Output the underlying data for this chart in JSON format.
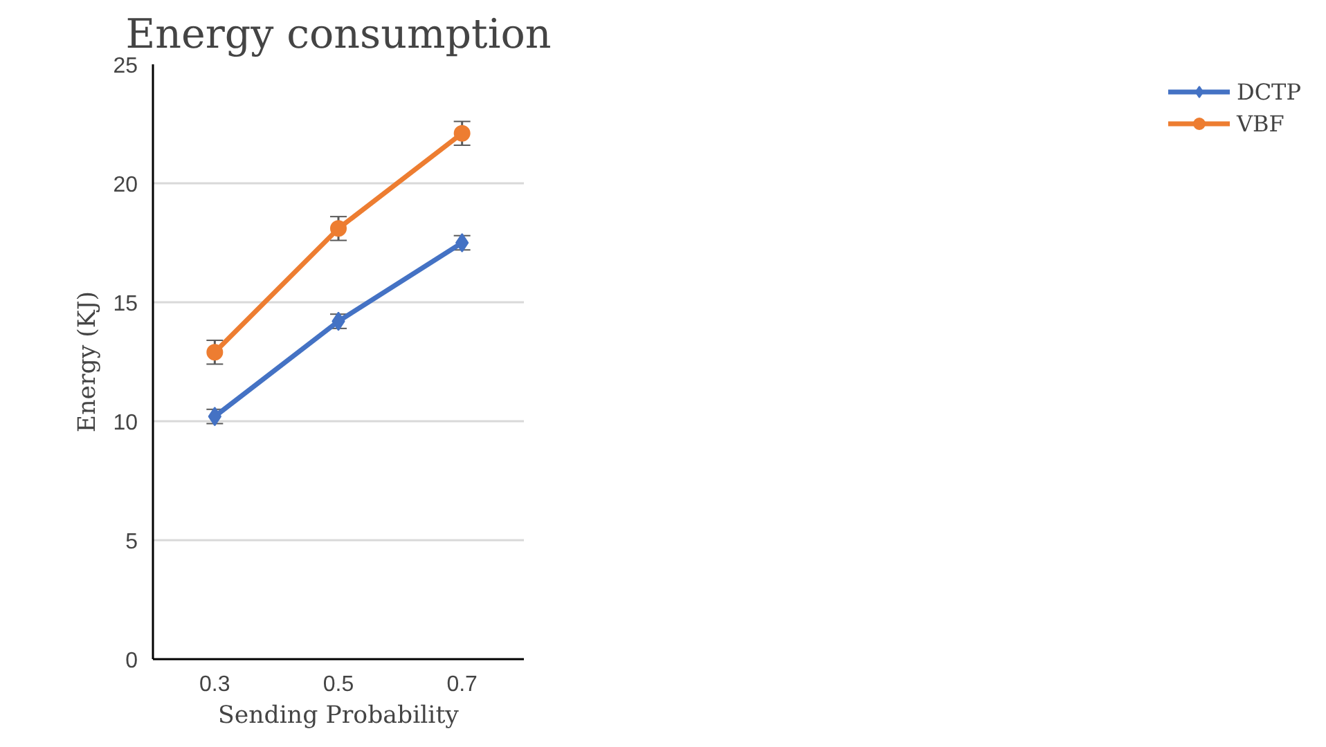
{
  "chart_data": {
    "type": "line",
    "title": "Energy consumption",
    "xlabel": "Sending Probability",
    "ylabel": "Energy (KJ)",
    "categories": [
      "0.3",
      "0.5",
      "0.7"
    ],
    "series": [
      {
        "name": "DCTP",
        "color": "#4472c4",
        "marker": "diamond",
        "values": [
          10.2,
          14.2,
          17.5
        ],
        "errors": [
          0.3,
          0.3,
          0.3
        ]
      },
      {
        "name": "VBF",
        "color": "#ed7d31",
        "marker": "circle",
        "values": [
          12.9,
          18.1,
          22.1
        ],
        "errors": [
          0.5,
          0.5,
          0.5
        ]
      }
    ],
    "ylim": [
      0,
      25
    ],
    "yticks": [
      0,
      5,
      10,
      15,
      20,
      25
    ],
    "grid": "y",
    "legend": "right"
  }
}
